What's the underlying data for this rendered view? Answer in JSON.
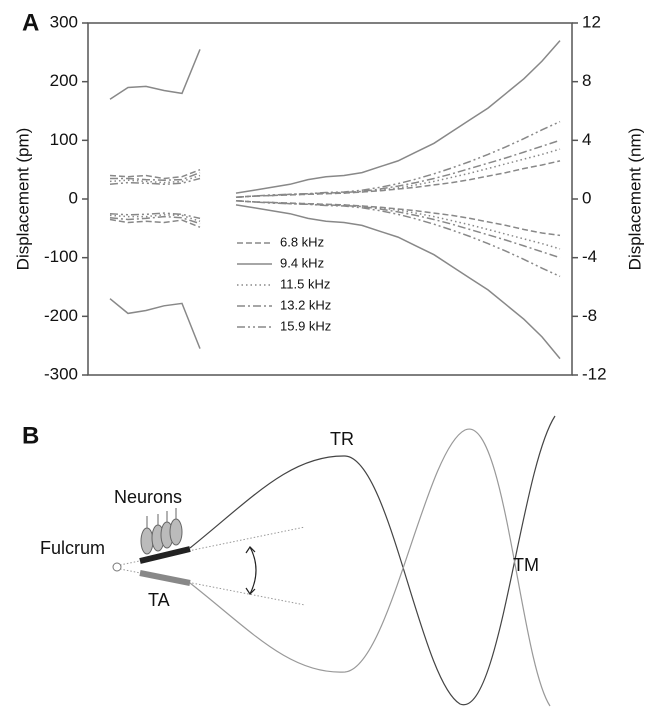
{
  "chart_data": {
    "type": "line",
    "panel_label": "A",
    "ylabel": "Displacement (pm)",
    "y2label": "Displacement (nm)",
    "ylim": [
      -300,
      300
    ],
    "yticks": [
      -300,
      -200,
      -100,
      0,
      100,
      200,
      300
    ],
    "y2lim": [
      -12,
      12
    ],
    "y2ticks": [
      -12,
      -8,
      -4,
      0,
      4,
      8,
      12
    ],
    "categories": [
      null,
      null,
      null,
      null,
      null,
      null,
      null,
      null,
      null,
      null,
      null,
      null,
      null,
      null,
      null,
      null,
      null,
      null,
      null,
      null,
      null,
      null,
      null,
      null,
      null,
      null
    ],
    "series": [
      {
        "name": "6.8 kHz",
        "color": "#888888",
        "dash": "6,3",
        "upper": [
          40,
          38,
          40,
          35,
          38,
          50,
          null,
          3,
          5,
          6,
          7,
          8,
          9,
          10,
          12,
          14,
          17,
          20,
          24,
          28,
          33,
          39,
          45,
          52,
          58,
          65
        ],
        "lower": [
          -35,
          -40,
          -38,
          -40,
          -36,
          -48,
          null,
          -3,
          -5,
          -6,
          -7,
          -8,
          -9,
          -10,
          -12,
          -14,
          -17,
          -20,
          -24,
          -28,
          -33,
          -39,
          -45,
          -52,
          -58,
          -62
        ]
      },
      {
        "name": "9.4 kHz",
        "color": "#888888",
        "dash": "none",
        "upper": [
          170,
          190,
          192,
          185,
          180,
          255,
          null,
          10,
          15,
          20,
          25,
          33,
          38,
          40,
          45,
          55,
          65,
          80,
          95,
          115,
          135,
          155,
          180,
          205,
          235,
          270
        ],
        "lower": [
          -170,
          -195,
          -190,
          -182,
          -178,
          -255,
          null,
          -10,
          -15,
          -20,
          -25,
          -33,
          -38,
          -40,
          -45,
          -55,
          -65,
          -80,
          -95,
          -115,
          -135,
          -155,
          -180,
          -205,
          -235,
          -272
        ]
      },
      {
        "name": "11.5 kHz",
        "color": "#888888",
        "dash": "1.5,3",
        "upper": [
          30,
          32,
          30,
          28,
          30,
          40,
          null,
          3,
          5,
          6,
          7,
          8,
          9,
          10,
          12,
          15,
          19,
          24,
          30,
          37,
          44,
          52,
          60,
          68,
          76,
          85
        ],
        "lower": [
          -28,
          -30,
          -30,
          -27,
          -28,
          -38,
          null,
          -3,
          -5,
          -6,
          -7,
          -8,
          -9,
          -10,
          -12,
          -15,
          -19,
          -24,
          -30,
          -37,
          -44,
          -52,
          -60,
          -68,
          -76,
          -85
        ]
      },
      {
        "name": "13.2 kHz",
        "color": "#888888",
        "dash": "8,3,2,3",
        "upper": [
          35,
          35,
          33,
          32,
          33,
          45,
          null,
          3,
          5,
          6,
          8,
          9,
          10,
          11,
          13,
          17,
          22,
          28,
          35,
          43,
          52,
          61,
          70,
          80,
          90,
          100
        ],
        "lower": [
          -32,
          -35,
          -33,
          -30,
          -32,
          -42,
          null,
          -3,
          -5,
          -6,
          -8,
          -9,
          -10,
          -11,
          -13,
          -17,
          -22,
          -28,
          -35,
          -43,
          -52,
          -61,
          -70,
          -80,
          -90,
          -100
        ]
      },
      {
        "name": "15.9 kHz",
        "color": "#888888",
        "dash": "8,3,2,3,2,3",
        "upper": [
          25,
          28,
          27,
          25,
          27,
          35,
          null,
          3,
          5,
          7,
          8,
          9,
          11,
          12,
          15,
          20,
          26,
          34,
          43,
          53,
          64,
          76,
          89,
          103,
          118,
          132
        ],
        "lower": [
          -25,
          -27,
          -26,
          -24,
          -26,
          -33,
          null,
          -3,
          -5,
          -7,
          -8,
          -9,
          -11,
          -12,
          -15,
          -20,
          -26,
          -34,
          -43,
          -53,
          -64,
          -76,
          -89,
          -103,
          -118,
          -132
        ]
      }
    ]
  },
  "diagram": {
    "panel_label": "B",
    "labels": {
      "neurons": "Neurons",
      "fulcrum": "Fulcrum",
      "ta": "TA",
      "tr": "TR",
      "tm": "TM"
    }
  }
}
